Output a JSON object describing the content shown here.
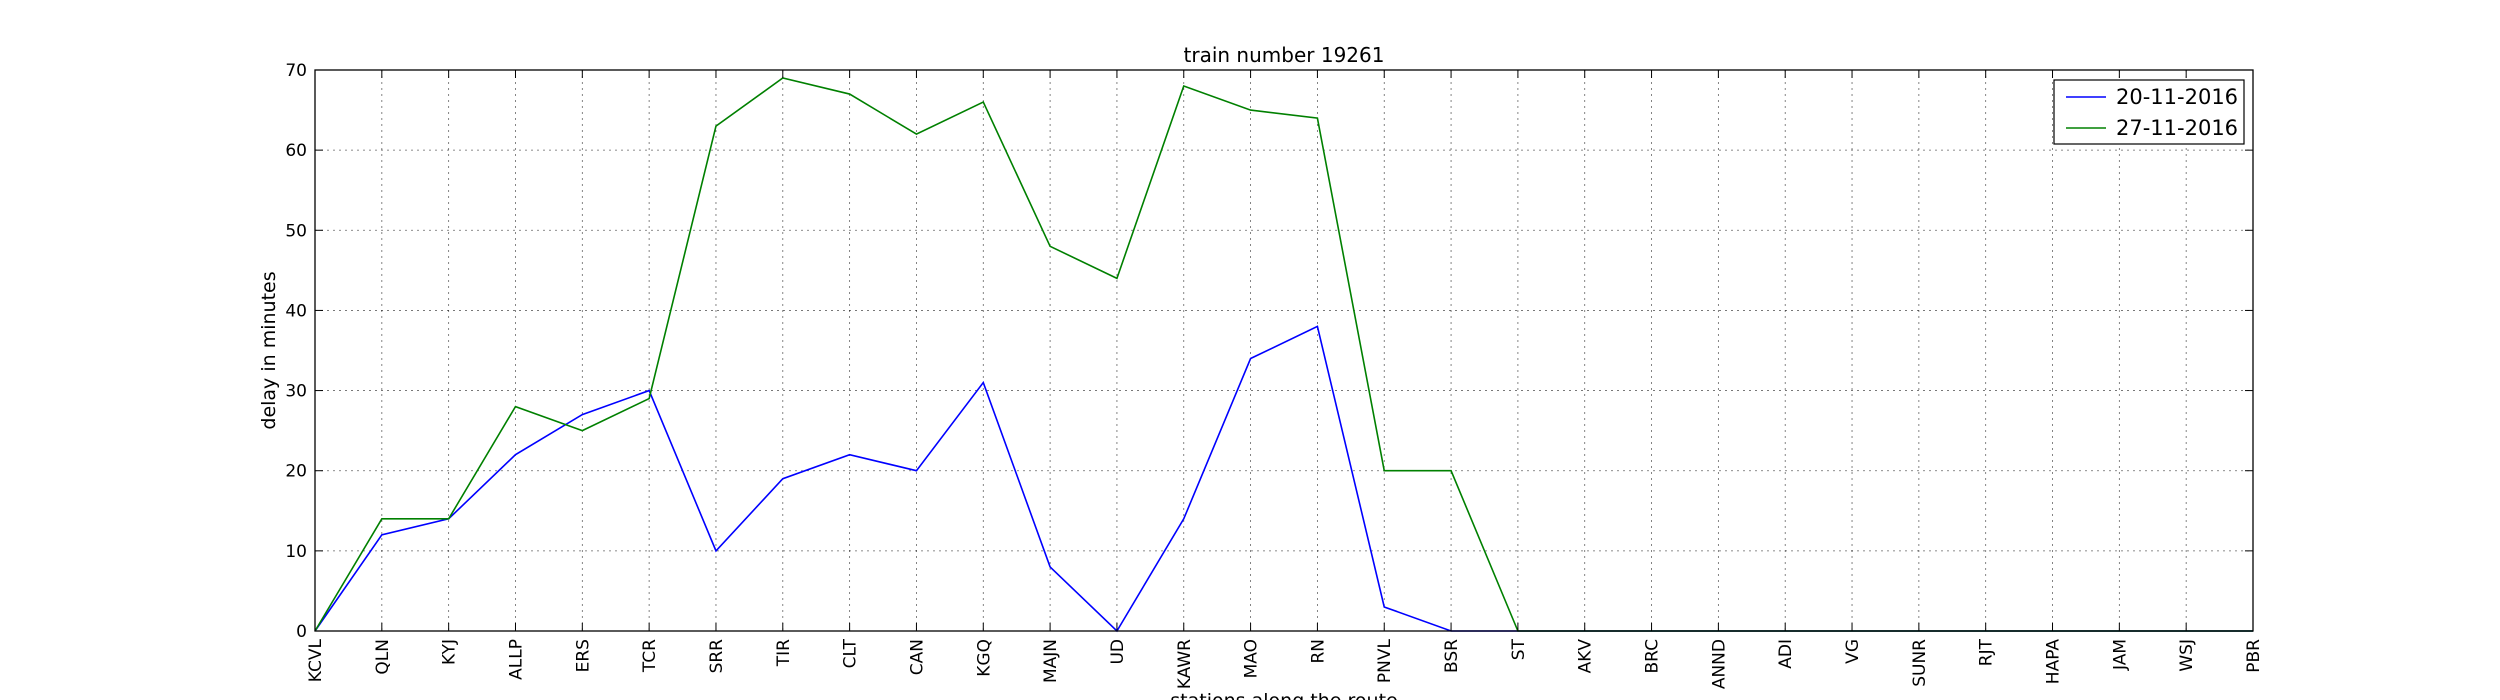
{
  "chart_data": {
    "type": "line",
    "title": "train number 19261",
    "xlabel": "stations along the route",
    "ylabel": "delay in minutes",
    "ylim": [
      0,
      70
    ],
    "yticks": [
      0,
      10,
      20,
      30,
      40,
      50,
      60,
      70
    ],
    "grid": true,
    "legend_position": "top-right",
    "categories": [
      "KCVL",
      "QLN",
      "KYJ",
      "ALLP",
      "ERS",
      "TCR",
      "SRR",
      "TIR",
      "CLT",
      "CAN",
      "KGQ",
      "MAJN",
      "UD",
      "KAWR",
      "MAO",
      "RN",
      "PNVL",
      "BSR",
      "ST",
      "AKV",
      "BRC",
      "ANND",
      "ADI",
      "VG",
      "SUNR",
      "RJT",
      "HAPA",
      "JAM",
      "WSJ",
      "PBR"
    ],
    "series": [
      {
        "name": "20-11-2016",
        "color": "#0000ff",
        "values": [
          0,
          12,
          14,
          22,
          27,
          30,
          10,
          19,
          22,
          20,
          31,
          8,
          0,
          14,
          34,
          38,
          3,
          0,
          0,
          0,
          0,
          0,
          0,
          0,
          0,
          0,
          0,
          0,
          0,
          0
        ]
      },
      {
        "name": "27-11-2016",
        "color": "#008000",
        "values": [
          0,
          14,
          14,
          28,
          25,
          29,
          63,
          69,
          67,
          62,
          66,
          48,
          44,
          68,
          65,
          64,
          20,
          20,
          0,
          0,
          0,
          0,
          0,
          0,
          0,
          0,
          0,
          0,
          0,
          0
        ]
      }
    ]
  }
}
